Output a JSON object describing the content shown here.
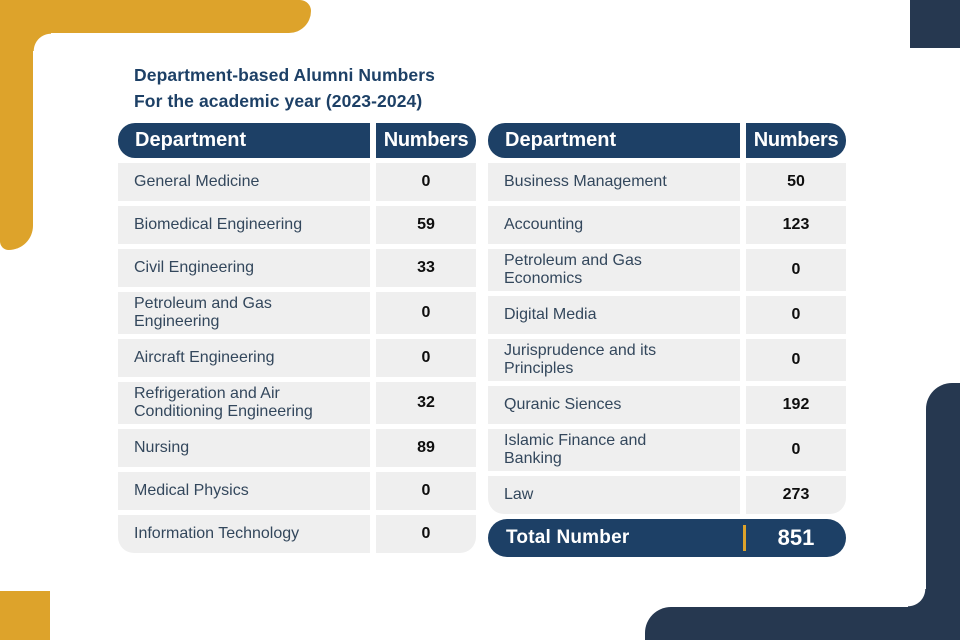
{
  "title": {
    "line1": "Department-based Alumni Numbers",
    "line2": "For the academic year (2023-2024)"
  },
  "table_header": {
    "department": "Department",
    "numbers": "Numbers"
  },
  "left_table": {
    "rows": [
      {
        "label": "General Medicine",
        "value": "0"
      },
      {
        "label": "Biomedical Engineering",
        "value": "59"
      },
      {
        "label": "Civil Engineering",
        "value": "33"
      },
      {
        "label": "Petroleum and Gas Engineering",
        "value": "0"
      },
      {
        "label": "Aircraft Engineering",
        "value": "0"
      },
      {
        "label": "Refrigeration and Air Conditioning Engineering",
        "value": "32"
      },
      {
        "label": "Nursing",
        "value": "89"
      },
      {
        "label": "Medical Physics",
        "value": "0"
      },
      {
        "label": "Information Technology",
        "value": "0"
      }
    ]
  },
  "right_table": {
    "rows": [
      {
        "label": "Business Management",
        "value": "50"
      },
      {
        "label": "Accounting",
        "value": "123"
      },
      {
        "label": "Petroleum and Gas Economics",
        "value": "0"
      },
      {
        "label": "Digital Media",
        "value": "0"
      },
      {
        "label": "Jurisprudence and its Principles",
        "value": "0"
      },
      {
        "label": "Quranic Siences",
        "value": "192"
      },
      {
        "label": "Islamic Finance and Banking",
        "value": "0"
      },
      {
        "label": "Law",
        "value": "273"
      }
    ],
    "total_label": "Total Number",
    "total_value": "851"
  },
  "colors": {
    "navy": "#1D4066",
    "corner_navy": "#263850",
    "gold": "#DDA32B",
    "row_gray": "#EFEFEF",
    "department_text": "#33475C",
    "number_text": "#0E0E0E"
  }
}
